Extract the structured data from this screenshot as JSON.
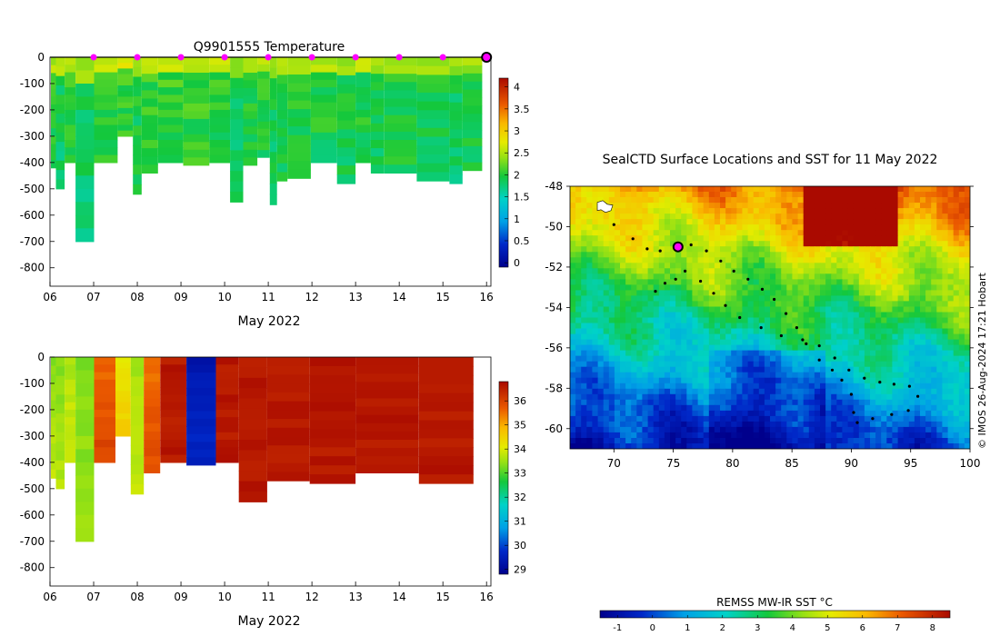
{
  "chart_data": [
    {
      "type": "heatmap",
      "panel": "temperature",
      "title": "Q9901555  Temperature",
      "xlabel": "May 2022",
      "ylabel": "",
      "x_tick_labels": [
        "06",
        "07",
        "08",
        "09",
        "10",
        "11",
        "12",
        "13",
        "14",
        "15",
        "16"
      ],
      "xlim": [
        6,
        16.1
      ],
      "y_tick_labels": [
        "0",
        "-100",
        "-200",
        "-300",
        "-400",
        "-500",
        "-600",
        "-700",
        "-800"
      ],
      "ylim": [
        -870,
        0
      ],
      "colorbar_ticks": [
        "0",
        "0.5",
        "1",
        "1.5",
        "2",
        "2.5",
        "3",
        "3.5",
        "4"
      ],
      "clim": [
        -0.1,
        4.2
      ],
      "surface_markers_day": [
        7,
        8,
        9,
        10,
        11,
        12,
        13,
        14,
        15
      ],
      "highlight_day": 16,
      "profiles": [
        {
          "day": 6.05,
          "max_depth": 420,
          "value": 2.0
        },
        {
          "day": 6.22,
          "max_depth": 500,
          "value": 1.9
        },
        {
          "day": 6.45,
          "max_depth": 400,
          "value": 2.05
        },
        {
          "day": 6.72,
          "max_depth": 700,
          "value": 1.85
        },
        {
          "day": 7.3,
          "max_depth": 400,
          "value": 2.05
        },
        {
          "day": 7.8,
          "max_depth": 300,
          "value": 2.1
        },
        {
          "day": 8.0,
          "max_depth": 520,
          "value": 1.95
        },
        {
          "day": 8.2,
          "max_depth": 440,
          "value": 2.05
        },
        {
          "day": 8.75,
          "max_depth": 400,
          "value": 2.1
        },
        {
          "day": 9.35,
          "max_depth": 410,
          "value": 2.1
        },
        {
          "day": 9.95,
          "max_depth": 400,
          "value": 2.05
        },
        {
          "day": 10.3,
          "max_depth": 550,
          "value": 1.9
        },
        {
          "day": 10.55,
          "max_depth": 410,
          "value": 2.0
        },
        {
          "day": 10.95,
          "max_depth": 380,
          "value": 2.05
        },
        {
          "day": 11.12,
          "max_depth": 560,
          "value": 1.9
        },
        {
          "day": 11.28,
          "max_depth": 470,
          "value": 2.0
        },
        {
          "day": 11.6,
          "max_depth": 460,
          "value": 2.0
        },
        {
          "day": 12.35,
          "max_depth": 400,
          "value": 2.0
        },
        {
          "day": 12.8,
          "max_depth": 480,
          "value": 1.95
        },
        {
          "day": 13.2,
          "max_depth": 400,
          "value": 2.0
        },
        {
          "day": 13.5,
          "max_depth": 440,
          "value": 1.95
        },
        {
          "day": 13.8,
          "max_depth": 440,
          "value": 2.0
        },
        {
          "day": 15.0,
          "max_depth": 470,
          "value": 1.95
        },
        {
          "day": 15.3,
          "max_depth": 480,
          "value": 1.9
        },
        {
          "day": 15.6,
          "max_depth": 430,
          "value": 1.95
        }
      ]
    },
    {
      "type": "heatmap",
      "panel": "salinity",
      "title": "",
      "xlabel": "May 2022",
      "ylabel": "",
      "x_tick_labels": [
        "06",
        "07",
        "08",
        "09",
        "10",
        "11",
        "12",
        "13",
        "14",
        "15",
        "16"
      ],
      "xlim": [
        6,
        16.1
      ],
      "y_tick_labels": [
        "0",
        "-100",
        "-200",
        "-300",
        "-400",
        "-500",
        "-600",
        "-700",
        "-800"
      ],
      "ylim": [
        -870,
        0
      ],
      "colorbar_ticks": [
        "29",
        "30",
        "31",
        "32",
        "33",
        "34",
        "35",
        "36"
      ],
      "clim": [
        28.8,
        36.8
      ],
      "profiles": [
        {
          "day": 6.05,
          "max_depth": 460,
          "value": 33.4
        },
        {
          "day": 6.22,
          "max_depth": 500,
          "value": 33.3
        },
        {
          "day": 6.45,
          "max_depth": 400,
          "value": 33.6
        },
        {
          "day": 6.72,
          "max_depth": 700,
          "value": 33.2
        },
        {
          "day": 7.3,
          "max_depth": 400,
          "value": 35.6
        },
        {
          "day": 7.7,
          "max_depth": 300,
          "value": 34.2
        },
        {
          "day": 8.0,
          "max_depth": 520,
          "value": 33.5
        },
        {
          "day": 8.3,
          "max_depth": 440,
          "value": 35.5
        },
        {
          "day": 8.75,
          "max_depth": 400,
          "value": 36.6
        },
        {
          "day": 9.5,
          "max_depth": 410,
          "value": 29.3
        },
        {
          "day": 10.1,
          "max_depth": 400,
          "value": 36.6
        },
        {
          "day": 10.55,
          "max_depth": 550,
          "value": 36.6
        },
        {
          "day": 11.4,
          "max_depth": 470,
          "value": 36.6
        },
        {
          "day": 12.5,
          "max_depth": 480,
          "value": 36.6
        },
        {
          "day": 13.5,
          "max_depth": 440,
          "value": 36.6
        },
        {
          "day": 15.4,
          "max_depth": 480,
          "value": 36.6
        }
      ]
    },
    {
      "type": "map",
      "panel": "sst-map",
      "title": "SealCTD Surface Locations and SST for 11 May 2022",
      "x_tick_labels": [
        "70",
        "75",
        "80",
        "85",
        "90",
        "95",
        "100"
      ],
      "xlim": [
        66.3,
        100
      ],
      "y_tick_labels": [
        "-48",
        "-50",
        "-52",
        "-54",
        "-56",
        "-58",
        "-60"
      ],
      "ylim": [
        -61,
        -48
      ],
      "credit": "© IMOS 26-Aug-2024 17:21 Hobart",
      "colorbar_label": "REMSS MW-IR SST °C",
      "colorbar_ticks": [
        "-1",
        "0",
        "1",
        "2",
        "3",
        "4",
        "5",
        "6",
        "7",
        "8"
      ],
      "clim": [
        -1.5,
        8.5
      ],
      "current_position": {
        "lon": 75.4,
        "lat": -51.0
      },
      "track": [
        [
          70.0,
          -49.9
        ],
        [
          71.6,
          -50.6
        ],
        [
          72.8,
          -51.1
        ],
        [
          73.9,
          -51.2
        ],
        [
          75.4,
          -51.0
        ],
        [
          76.5,
          -50.9
        ],
        [
          77.8,
          -51.2
        ],
        [
          79.0,
          -51.7
        ],
        [
          80.1,
          -52.2
        ],
        [
          81.3,
          -52.6
        ],
        [
          82.5,
          -53.1
        ],
        [
          83.5,
          -53.6
        ],
        [
          84.5,
          -54.3
        ],
        [
          85.4,
          -55.0
        ],
        [
          86.2,
          -55.8
        ],
        [
          87.3,
          -56.6
        ],
        [
          88.4,
          -57.1
        ],
        [
          89.2,
          -57.6
        ],
        [
          90.0,
          -58.3
        ],
        [
          90.2,
          -59.2
        ],
        [
          90.5,
          -59.7
        ],
        [
          91.8,
          -59.5
        ],
        [
          93.4,
          -59.3
        ],
        [
          94.8,
          -59.1
        ],
        [
          95.6,
          -58.4
        ],
        [
          94.9,
          -57.9
        ],
        [
          93.6,
          -57.8
        ],
        [
          92.4,
          -57.7
        ],
        [
          91.1,
          -57.5
        ],
        [
          89.8,
          -57.1
        ],
        [
          88.6,
          -56.5
        ],
        [
          87.3,
          -55.9
        ],
        [
          85.9,
          -55.6
        ],
        [
          84.1,
          -55.4
        ],
        [
          82.4,
          -55.0
        ],
        [
          80.6,
          -54.5
        ],
        [
          79.4,
          -53.9
        ],
        [
          78.4,
          -53.3
        ],
        [
          77.3,
          -52.7
        ],
        [
          76.0,
          -52.2
        ],
        [
          75.2,
          -52.6
        ],
        [
          74.3,
          -52.8
        ],
        [
          73.5,
          -53.2
        ]
      ]
    }
  ]
}
